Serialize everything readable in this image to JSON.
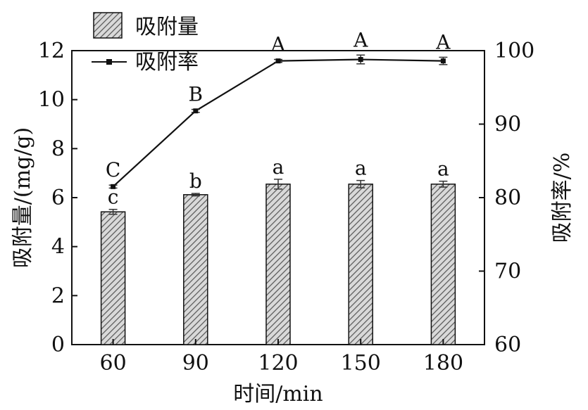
{
  "chart_data": {
    "type": "bar",
    "categories": [
      "60",
      "90",
      "120",
      "150",
      "180"
    ],
    "xlabel": "时间/min",
    "ylabel": "吸附量/(mg/g)",
    "ylabel_right": "吸附率/%",
    "ylim": [
      0,
      12
    ],
    "ylim_right": [
      60,
      100
    ],
    "y_ticks": [
      "0",
      "2",
      "4",
      "6",
      "8",
      "10",
      "12"
    ],
    "y_right_ticks": [
      "60",
      "70",
      "80",
      "90",
      "100"
    ],
    "legend_position": "top-left",
    "series": [
      {
        "name": "吸附量",
        "kind": "bar",
        "axis": "left",
        "values": [
          5.42,
          6.12,
          6.55,
          6.55,
          6.55
        ],
        "errors": [
          0.1,
          0.05,
          0.2,
          0.15,
          0.12
        ],
        "labels": [
          "c",
          "b",
          "a",
          "a",
          "a"
        ]
      },
      {
        "name": "吸附率",
        "kind": "line",
        "axis": "right",
        "values": [
          81.5,
          91.8,
          98.6,
          98.8,
          98.6
        ],
        "errors": [
          0.2,
          0.2,
          0.2,
          0.6,
          0.5
        ],
        "labels": [
          "C",
          "B",
          "A",
          "A",
          "A"
        ]
      }
    ],
    "colors": {
      "bar_fill": "#9a9a9a",
      "line": "#111111"
    }
  }
}
